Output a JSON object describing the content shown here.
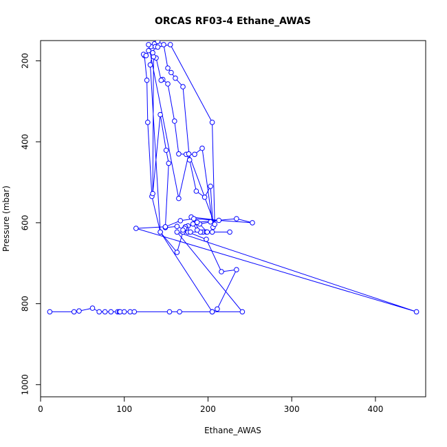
{
  "chart_data": {
    "type": "line",
    "title": "ORCAS RF03-4 Ethane_AWAS",
    "xlabel": "Ethane_AWAS",
    "ylabel": "Pressure (mbar)",
    "xlim": [
      0,
      460
    ],
    "ylim": [
      1030,
      150
    ],
    "y_reversed": true,
    "x_ticks": [
      0,
      100,
      200,
      300,
      400
    ],
    "y_ticks": [
      200,
      400,
      600,
      800,
      1000
    ],
    "grid": false,
    "line_color": "#0000ff",
    "marker": "open-circle",
    "series": [
      {
        "x": [
          11,
          40,
          46,
          62,
          70,
          77,
          84,
          92,
          94,
          95,
          100,
          107,
          112,
          154,
          166,
          205,
          211,
          234,
          216,
          198,
          176,
          170,
          163,
          143,
          133,
          128,
          127,
          124,
          123,
          126,
          129,
          132,
          136,
          140,
          147,
          152,
          156,
          161,
          170,
          178,
          186,
          196,
          203,
          206,
          193,
          184,
          174,
          165,
          160,
          152,
          146,
          144,
          138,
          135,
          134,
          143,
          150,
          153,
          149,
          163,
          179,
          194,
          205,
          226,
          198,
          191,
          180,
          213,
          203,
          176,
          174,
          173,
          172,
          170,
          182,
          187,
          199,
          190,
          187,
          234,
          253,
          183,
          167,
          149,
          114,
          449,
          163,
          241,
          205,
          143,
          131,
          134,
          137,
          140,
          155,
          205,
          208,
          177,
          165,
          129
        ],
        "y": [
          820,
          820,
          818,
          811,
          820,
          820,
          820,
          820,
          820,
          820,
          820,
          820,
          820,
          820,
          820,
          820,
          813,
          716,
          721,
          641,
          623,
          623,
          673,
          623,
          535,
          352,
          248,
          187,
          184,
          187,
          175,
          165,
          158,
          152,
          160,
          218,
          229,
          243,
          264,
          445,
          522,
          537,
          510,
          611,
          416,
          431,
          431,
          430,
          349,
          257,
          246,
          248,
          193,
          190,
          528,
          333,
          421,
          453,
          612,
          609,
          623,
          623,
          623,
          623,
          623,
          623,
          586,
          594,
          598,
          608,
          614,
          610,
          614,
          618,
          603,
          618,
          623,
          603,
          599,
          590,
          600,
          590,
          595,
          610,
          614,
          820,
          623,
          820,
          820,
          623,
          210,
          180,
          165,
          166,
          160,
          352,
          604,
          430,
          540,
          160
        ]
      }
    ]
  }
}
